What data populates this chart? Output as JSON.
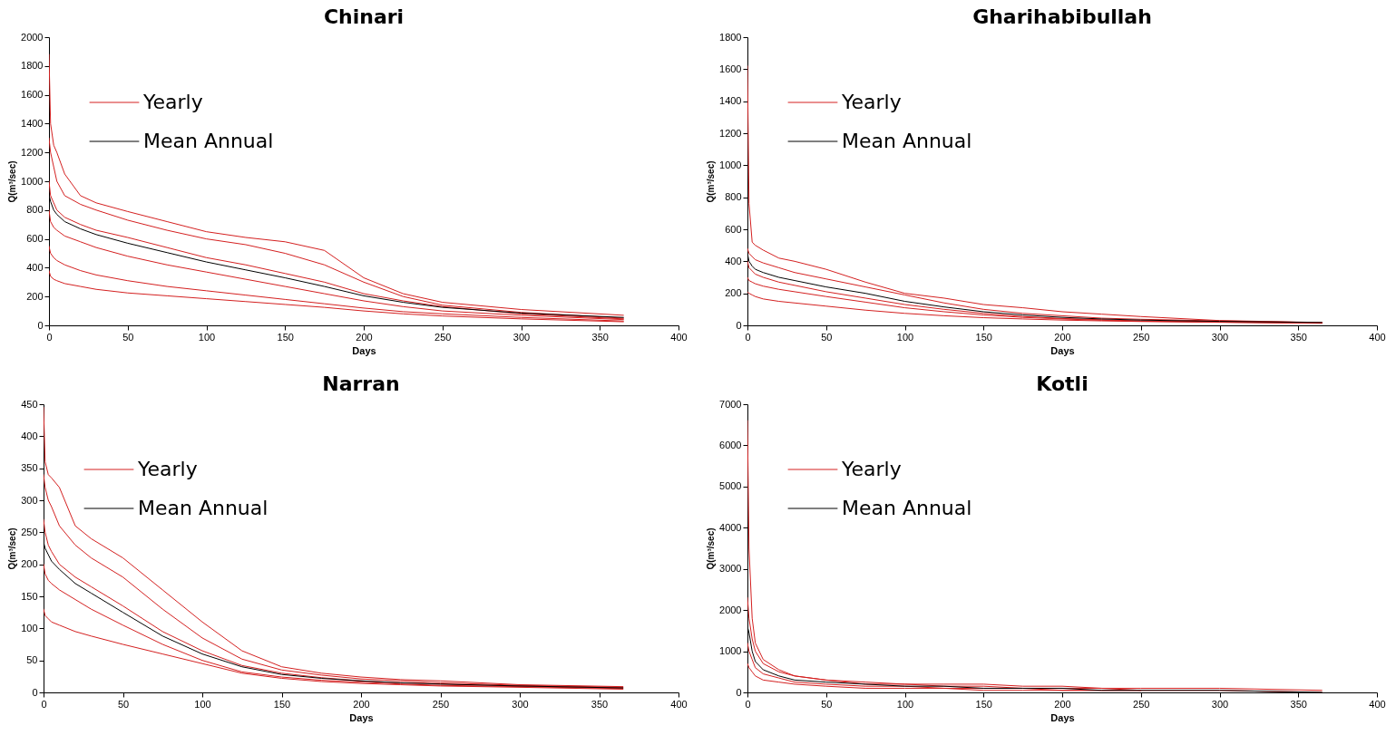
{
  "chart_data": [
    {
      "type": "line",
      "title": "Chinari",
      "xlabel": "Days",
      "ylabel": "Q(m³/sec)",
      "legend": "top left",
      "x": [
        0,
        1,
        3,
        5,
        10,
        20,
        30,
        50,
        75,
        100,
        125,
        150,
        175,
        200,
        225,
        250,
        300,
        365
      ],
      "xlim": [
        0,
        400
      ],
      "xticks": [
        0,
        50,
        100,
        150,
        200,
        250,
        300,
        350,
        400
      ],
      "ylim": [
        0,
        2000
      ],
      "yticks": [
        0,
        200,
        400,
        600,
        800,
        1000,
        1200,
        1400,
        1600,
        1800,
        2000
      ],
      "series": [
        {
          "name": "Yearly",
          "color": "#d42020",
          "values": [
            1880,
            1400,
            1250,
            1200,
            1050,
            900,
            850,
            790,
            720,
            650,
            610,
            580,
            520,
            330,
            220,
            160,
            110,
            70
          ]
        },
        {
          "color": "#d42020",
          "values": [
            1300,
            1200,
            1100,
            1000,
            900,
            840,
            800,
            730,
            660,
            600,
            560,
            500,
            420,
            300,
            200,
            140,
            90,
            50
          ]
        },
        {
          "color": "#d42020",
          "values": [
            1000,
            900,
            850,
            800,
            750,
            700,
            660,
            610,
            540,
            470,
            420,
            360,
            300,
            220,
            170,
            130,
            80,
            45
          ]
        },
        {
          "color": "#d42020",
          "values": [
            800,
            720,
            680,
            660,
            620,
            580,
            540,
            480,
            420,
            370,
            320,
            270,
            220,
            170,
            130,
            100,
            70,
            40
          ]
        },
        {
          "color": "#d42020",
          "values": [
            550,
            500,
            470,
            450,
            420,
            380,
            350,
            310,
            270,
            240,
            210,
            180,
            150,
            120,
            95,
            80,
            55,
            30
          ]
        },
        {
          "color": "#d42020",
          "values": [
            380,
            340,
            320,
            310,
            290,
            270,
            250,
            225,
            205,
            185,
            165,
            145,
            125,
            100,
            80,
            65,
            45,
            25
          ]
        },
        {
          "name": "Mean Annual",
          "color": "#000000",
          "values": [
            910,
            860,
            800,
            770,
            720,
            670,
            630,
            570,
            505,
            440,
            385,
            330,
            270,
            205,
            160,
            125,
            85,
            55
          ]
        }
      ]
    },
    {
      "type": "line",
      "title": "Gharihabibullah",
      "xlabel": "Days",
      "ylabel": "Q(m³/sec)",
      "legend": "top left",
      "x": [
        0,
        1,
        3,
        5,
        10,
        20,
        30,
        50,
        75,
        100,
        125,
        150,
        175,
        200,
        225,
        250,
        300,
        365
      ],
      "xlim": [
        0,
        400
      ],
      "xticks": [
        0,
        50,
        100,
        150,
        200,
        250,
        300,
        350,
        400
      ],
      "ylim": [
        0,
        1800
      ],
      "yticks": [
        0,
        200,
        400,
        600,
        800,
        1000,
        1200,
        1400,
        1600,
        1800
      ],
      "series": [
        {
          "name": "Yearly",
          "color": "#d42020",
          "values": [
            1620,
            760,
            520,
            500,
            470,
            420,
            400,
            350,
            270,
            200,
            170,
            130,
            110,
            85,
            70,
            55,
            30,
            18
          ]
        },
        {
          "color": "#d42020",
          "values": [
            480,
            450,
            430,
            410,
            390,
            360,
            330,
            290,
            240,
            190,
            140,
            100,
            75,
            60,
            45,
            38,
            28,
            17
          ]
        },
        {
          "color": "#d42020",
          "values": [
            400,
            360,
            340,
            320,
            300,
            270,
            250,
            210,
            170,
            130,
            100,
            75,
            55,
            43,
            35,
            28,
            22,
            15
          ]
        },
        {
          "color": "#d42020",
          "values": [
            300,
            280,
            270,
            260,
            245,
            225,
            210,
            180,
            145,
            110,
            85,
            65,
            50,
            40,
            32,
            26,
            20,
            14
          ]
        },
        {
          "color": "#d42020",
          "values": [
            210,
            200,
            190,
            180,
            165,
            150,
            140,
            120,
            95,
            75,
            60,
            48,
            40,
            33,
            28,
            24,
            19,
            13
          ]
        },
        {
          "name": "Mean Annual",
          "color": "#000000",
          "values": [
            450,
            400,
            370,
            350,
            330,
            300,
            280,
            240,
            200,
            150,
            115,
            85,
            65,
            50,
            40,
            33,
            25,
            18
          ]
        }
      ]
    },
    {
      "type": "line",
      "title": "Narran",
      "xlabel": "Days",
      "ylabel": "Q(m³/sec)",
      "legend": "top left",
      "x": [
        0,
        1,
        3,
        5,
        10,
        20,
        30,
        50,
        75,
        100,
        125,
        150,
        175,
        200,
        225,
        250,
        300,
        365
      ],
      "xlim": [
        0,
        400
      ],
      "xticks": [
        0,
        50,
        100,
        150,
        200,
        250,
        300,
        350,
        400
      ],
      "ylim": [
        0,
        450
      ],
      "yticks": [
        0,
        50,
        100,
        150,
        200,
        250,
        300,
        350,
        400,
        450
      ],
      "series": [
        {
          "name": "Yearly",
          "color": "#d42020",
          "values": [
            445,
            360,
            340,
            335,
            320,
            260,
            240,
            210,
            160,
            110,
            65,
            40,
            30,
            24,
            20,
            18,
            12,
            9
          ]
        },
        {
          "color": "#d42020",
          "values": [
            340,
            320,
            300,
            290,
            260,
            230,
            210,
            180,
            130,
            85,
            52,
            35,
            27,
            21,
            18,
            15,
            11,
            8
          ]
        },
        {
          "color": "#d42020",
          "values": [
            270,
            250,
            230,
            220,
            200,
            180,
            165,
            135,
            95,
            65,
            42,
            30,
            23,
            18,
            15,
            13,
            10,
            7
          ]
        },
        {
          "color": "#d42020",
          "values": [
            200,
            185,
            175,
            170,
            160,
            145,
            130,
            105,
            75,
            50,
            32,
            24,
            19,
            16,
            13,
            11,
            9,
            6
          ]
        },
        {
          "color": "#d42020",
          "values": [
            130,
            120,
            115,
            110,
            105,
            95,
            88,
            75,
            60,
            45,
            30,
            22,
            17,
            14,
            12,
            10,
            8,
            5
          ]
        },
        {
          "name": "Mean Annual",
          "color": "#000000",
          "values": [
            235,
            225,
            215,
            205,
            192,
            170,
            155,
            125,
            88,
            60,
            40,
            28,
            22,
            18,
            15,
            13,
            10,
            7
          ]
        }
      ]
    },
    {
      "type": "line",
      "title": "Kotli",
      "xlabel": "Days",
      "ylabel": "Q(m³/sec)",
      "legend": "top left",
      "x": [
        0,
        1,
        3,
        5,
        10,
        20,
        30,
        50,
        75,
        100,
        125,
        150,
        175,
        200,
        225,
        250,
        300,
        365
      ],
      "xlim": [
        0,
        400
      ],
      "xticks": [
        0,
        50,
        100,
        150,
        200,
        250,
        300,
        350,
        400
      ],
      "ylim": [
        0,
        7000
      ],
      "yticks": [
        0,
        1000,
        2000,
        3000,
        4000,
        5000,
        6000,
        7000
      ],
      "series": [
        {
          "name": "Yearly",
          "color": "#d42020",
          "values": [
            6600,
            3500,
            1800,
            1200,
            800,
            550,
            400,
            300,
            250,
            200,
            200,
            200,
            150,
            150,
            100,
            100,
            100,
            50
          ]
        },
        {
          "color": "#d42020",
          "values": [
            2300,
            1800,
            1300,
            1000,
            700,
            500,
            400,
            300,
            200,
            200,
            150,
            150,
            100,
            100,
            100,
            50,
            50,
            0
          ]
        },
        {
          "color": "#d42020",
          "values": [
            1200,
            1000,
            800,
            600,
            450,
            350,
            250,
            200,
            150,
            150,
            100,
            100,
            100,
            50,
            50,
            50,
            null,
            null
          ]
        },
        {
          "color": "#d42020",
          "values": [
            700,
            600,
            500,
            400,
            300,
            250,
            200,
            150,
            100,
            100,
            100,
            50,
            50,
            50,
            50,
            50,
            null,
            null
          ]
        },
        {
          "name": "Mean Annual",
          "color": "#000000",
          "values": [
            1600,
            1450,
            1000,
            750,
            550,
            400,
            300,
            250,
            200,
            150,
            150,
            100,
            100,
            100,
            50,
            50,
            50,
            0
          ]
        }
      ]
    }
  ]
}
